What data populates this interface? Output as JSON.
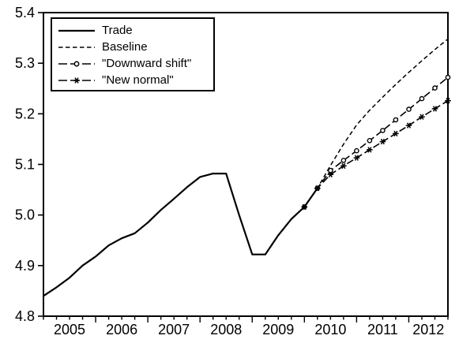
{
  "chart_data": {
    "type": "line",
    "title": "",
    "xlabel": "",
    "ylabel": "",
    "x_axis": {
      "tick_labels": [
        "2005",
        "2006",
        "2007",
        "2008",
        "2009",
        "2010",
        "2011",
        "2012"
      ],
      "frequency": "quarterly",
      "range": "2005Q1 to 2012Q4",
      "minor_tick_every": "quarter",
      "major_tick_every": "year"
    },
    "y_axis": {
      "min": 4.8,
      "max": 5.4,
      "ticks": [
        5.4,
        5.3,
        5.2,
        5.1,
        5.0,
        4.9,
        4.8
      ]
    },
    "legend": {
      "position": "top-left",
      "border": true
    },
    "colors": {
      "line": "#000000",
      "background": "#ffffff",
      "text": "#000000"
    },
    "series": [
      {
        "name": "Trade",
        "style": "solid",
        "marker": "none",
        "start_period": "2005Q1",
        "start_index": 0,
        "values": [
          4.84,
          4.857,
          4.876,
          4.9,
          4.918,
          4.94,
          4.954,
          4.964,
          4.985,
          5.01,
          5.032,
          5.055,
          5.075,
          5.082,
          5.082,
          5.0,
          4.922,
          4.922,
          4.96,
          4.992,
          5.016,
          5.053
        ]
      },
      {
        "name": "Baseline",
        "style": "dashed",
        "marker": "none",
        "start_period": "2010Q1",
        "start_index": 20,
        "values": [
          5.016,
          5.053,
          5.098,
          5.14,
          5.178,
          5.207,
          5.233,
          5.258,
          5.282,
          5.305,
          5.327,
          5.348
        ]
      },
      {
        "name": "\"Downward shift\"",
        "style": "dash-dot",
        "marker": "circle",
        "start_period": "2010Q1",
        "start_index": 20,
        "values": [
          5.016,
          5.053,
          5.088,
          5.108,
          5.127,
          5.147,
          5.167,
          5.188,
          5.209,
          5.23,
          5.251,
          5.272
        ]
      },
      {
        "name": "\"New normal\"",
        "style": "dash-dot",
        "marker": "asterisk",
        "start_period": "2010Q1",
        "start_index": 20,
        "values": [
          5.016,
          5.053,
          5.08,
          5.097,
          5.113,
          5.129,
          5.145,
          5.161,
          5.177,
          5.194,
          5.21,
          5.226
        ]
      }
    ]
  }
}
